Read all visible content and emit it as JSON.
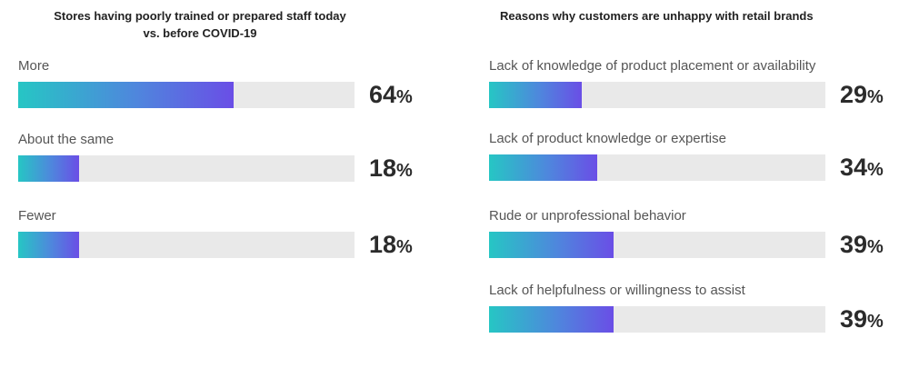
{
  "chart_data": [
    {
      "type": "bar",
      "title": "Stores having poorly trained or prepared staff today vs. before COVID-19",
      "title_lines": [
        "Stores having poorly trained or prepared staff today",
        "vs. before COVID-19"
      ],
      "categories": [
        "More",
        "About the same",
        "Fewer"
      ],
      "values": [
        64,
        18,
        18
      ],
      "unit": "%",
      "xlim": [
        0,
        100
      ],
      "grid": false
    },
    {
      "type": "bar",
      "title": "Reasons why customers are unhappy with retail brands",
      "title_lines": [
        "Reasons why customers are unhappy with retail brands"
      ],
      "categories": [
        "Lack of knowledge of product placement or availability",
        "Lack of product knowledge or expertise",
        "Rude or unprofessional behavior",
        "Lack of helpfulness or willingness to assist"
      ],
      "values": [
        29,
        34,
        39,
        39
      ],
      "unit": "%",
      "xlim": [
        0,
        100
      ],
      "grid": false
    }
  ],
  "colors": {
    "gradient_start": "#26c6c4",
    "gradient_end": "#6a4ee6",
    "track": "#e9e9e9"
  }
}
